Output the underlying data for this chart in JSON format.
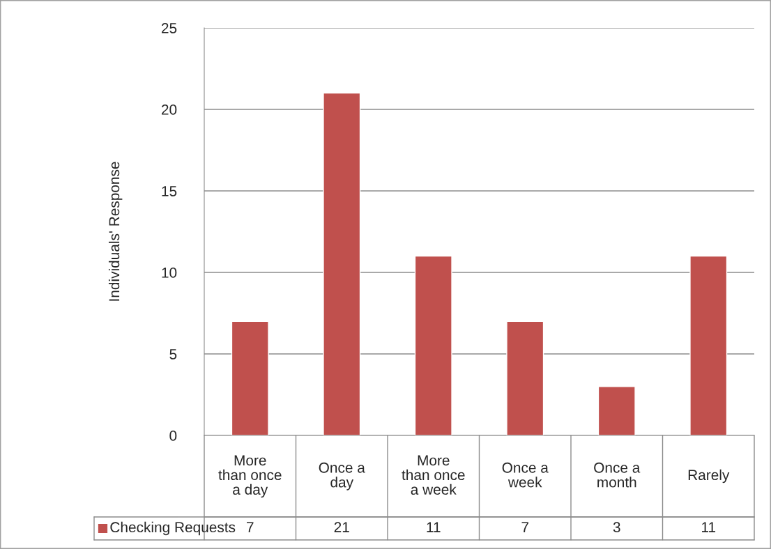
{
  "chart_data": {
    "type": "bar",
    "ylabel": "Individuals' Response",
    "categories": [
      "More\nthan once\na day",
      "Once a\nday",
      "More\nthan once\na week",
      "Once a\nweek",
      "Once a\nmonth",
      "Rarely"
    ],
    "series": [
      {
        "name": "Checking Requests",
        "color": "#c0504d",
        "values": [
          7,
          21,
          11,
          7,
          3,
          11
        ]
      }
    ],
    "ylim": [
      0,
      25
    ],
    "yticks": [
      0,
      5,
      10,
      15,
      20,
      25
    ],
    "grid": "y",
    "legend": "bottom",
    "data_labels": true
  }
}
